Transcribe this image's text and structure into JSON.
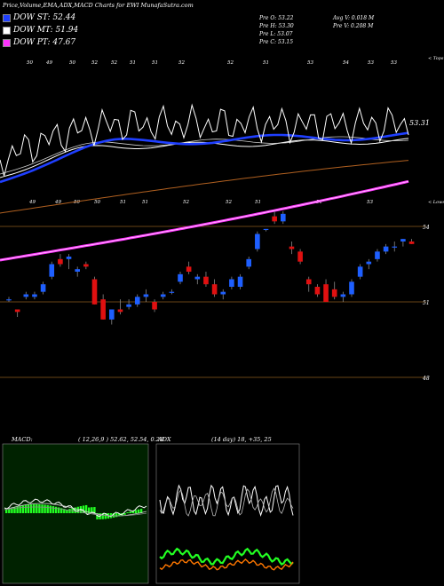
{
  "header": {
    "title": "Price,Volume,EMA,ADX,MACD Charts for EWI MunafaSutra.com"
  },
  "legend": [
    {
      "label": "DOW ST: 52.44",
      "color": "#1f3fff"
    },
    {
      "label": "DOW MT: 51.94",
      "color": "#ffffff"
    },
    {
      "label": "DOW PT: 47.67",
      "color": "#ff33ff"
    }
  ],
  "stats": {
    "prev_open": "Pre   O: 53.22",
    "prev_high": "Pre   H: 53.30",
    "prev_low": "Pre   L: 53.07",
    "prev_close": "Pre   C: 53.15",
    "avg_volume": "Avg V: 0.018 M",
    "prev_volume": "Pre   V: 0.208 M"
  },
  "macd_label": {
    "name": "MACD:",
    "values": "( 12,26,9 ) 52.62, 52.54, 0.28"
  },
  "adx_label": {
    "name": "ADX",
    "values": "(14  day) 18, +35, 25"
  },
  "colors": {
    "up": "#1e5fff",
    "down": "#e01010",
    "ema_st": "#1f3fff",
    "ema_pt": "#ff33ff",
    "ema_lt": "#b06020",
    "grid": "#8a5a1e",
    "macd_bar": "#22ff22",
    "adx_plus": "#22ff22",
    "adx_minus": "#ff7700"
  },
  "chart_data": {
    "type": "candlestick",
    "y_axis_ticks": [
      "54",
      "51",
      "48"
    ],
    "top_labels": [
      "50",
      "49",
      "50",
      "52",
      "52",
      "51",
      "51",
      "52",
      "52",
      "51",
      "53",
      "54",
      "53",
      "53"
    ],
    "top_right_label": "< Tops",
    "bottom_labels": [
      "49",
      "49",
      "50",
      "50",
      "51",
      "51",
      "52",
      "52",
      "51",
      "51",
      "53"
    ],
    "bottom_right_label": "< Lows",
    "ema_st_value": "53.31",
    "candles": [
      {
        "o": 51.1,
        "h": 51.2,
        "l": 51.0,
        "c": 51.1
      },
      {
        "o": 50.7,
        "h": 50.7,
        "l": 50.4,
        "c": 50.6
      },
      {
        "o": 51.2,
        "h": 51.4,
        "l": 51.1,
        "c": 51.3
      },
      {
        "o": 51.2,
        "h": 51.4,
        "l": 51.1,
        "c": 51.3
      },
      {
        "o": 51.4,
        "h": 51.8,
        "l": 51.3,
        "c": 51.7
      },
      {
        "o": 52.0,
        "h": 52.6,
        "l": 51.9,
        "c": 52.5
      },
      {
        "o": 52.7,
        "h": 52.9,
        "l": 52.4,
        "c": 52.5
      },
      {
        "o": 52.7,
        "h": 52.9,
        "l": 52.3,
        "c": 52.8
      },
      {
        "o": 52.2,
        "h": 52.4,
        "l": 52.0,
        "c": 52.3
      },
      {
        "o": 52.5,
        "h": 52.6,
        "l": 52.3,
        "c": 52.4
      },
      {
        "o": 51.9,
        "h": 52.0,
        "l": 50.9,
        "c": 50.9
      },
      {
        "o": 51.1,
        "h": 51.3,
        "l": 50.3,
        "c": 50.3
      },
      {
        "o": 50.3,
        "h": 50.7,
        "l": 50.1,
        "c": 50.7
      },
      {
        "o": 50.7,
        "h": 51.1,
        "l": 50.5,
        "c": 50.6
      },
      {
        "o": 50.8,
        "h": 51.1,
        "l": 50.7,
        "c": 50.9
      },
      {
        "o": 50.9,
        "h": 51.3,
        "l": 50.8,
        "c": 51.2
      },
      {
        "o": 51.2,
        "h": 51.5,
        "l": 51.0,
        "c": 51.3
      },
      {
        "o": 51.0,
        "h": 51.1,
        "l": 50.6,
        "c": 50.7
      },
      {
        "o": 51.2,
        "h": 51.4,
        "l": 51.1,
        "c": 51.3
      },
      {
        "o": 51.4,
        "h": 51.5,
        "l": 51.3,
        "c": 51.4
      },
      {
        "o": 51.8,
        "h": 52.2,
        "l": 51.7,
        "c": 52.1
      },
      {
        "o": 52.4,
        "h": 52.6,
        "l": 52.1,
        "c": 52.2
      },
      {
        "o": 51.9,
        "h": 52.1,
        "l": 51.7,
        "c": 52.0
      },
      {
        "o": 52.0,
        "h": 52.2,
        "l": 51.6,
        "c": 51.7
      },
      {
        "o": 51.7,
        "h": 51.9,
        "l": 51.2,
        "c": 51.3
      },
      {
        "o": 51.3,
        "h": 51.5,
        "l": 51.1,
        "c": 51.4
      },
      {
        "o": 51.6,
        "h": 52.0,
        "l": 51.5,
        "c": 51.9
      },
      {
        "o": 51.6,
        "h": 52.1,
        "l": 51.5,
        "c": 52.0
      },
      {
        "o": 52.4,
        "h": 52.8,
        "l": 52.3,
        "c": 52.7
      },
      {
        "o": 53.1,
        "h": 53.8,
        "l": 53.0,
        "c": 53.7
      },
      {
        "o": 53.9,
        "h": 53.9,
        "l": 53.8,
        "c": 53.9
      },
      {
        "o": 54.4,
        "h": 54.6,
        "l": 54.1,
        "c": 54.2
      },
      {
        "o": 54.2,
        "h": 54.6,
        "l": 54.1,
        "c": 54.5
      },
      {
        "o": 53.2,
        "h": 53.4,
        "l": 52.9,
        "c": 53.1
      },
      {
        "o": 53.0,
        "h": 53.1,
        "l": 52.5,
        "c": 52.6
      },
      {
        "o": 51.9,
        "h": 52.0,
        "l": 51.4,
        "c": 51.7
      },
      {
        "o": 51.6,
        "h": 51.7,
        "l": 51.2,
        "c": 51.3
      },
      {
        "o": 51.7,
        "h": 51.9,
        "l": 51.0,
        "c": 51.0
      },
      {
        "o": 51.5,
        "h": 51.8,
        "l": 51.1,
        "c": 51.2
      },
      {
        "o": 51.2,
        "h": 51.4,
        "l": 51.0,
        "c": 51.3
      },
      {
        "o": 51.3,
        "h": 51.9,
        "l": 51.2,
        "c": 51.8
      },
      {
        "o": 52.0,
        "h": 52.5,
        "l": 51.9,
        "c": 52.4
      },
      {
        "o": 52.5,
        "h": 52.7,
        "l": 52.3,
        "c": 52.6
      },
      {
        "o": 52.7,
        "h": 53.1,
        "l": 52.6,
        "c": 53.0
      },
      {
        "o": 53.0,
        "h": 53.3,
        "l": 52.9,
        "c": 53.2
      },
      {
        "o": 53.2,
        "h": 53.4,
        "l": 53.0,
        "c": 53.2
      },
      {
        "o": 53.4,
        "h": 53.5,
        "l": 53.2,
        "c": 53.5
      },
      {
        "o": 53.4,
        "h": 53.5,
        "l": 53.3,
        "c": 53.3
      }
    ]
  }
}
